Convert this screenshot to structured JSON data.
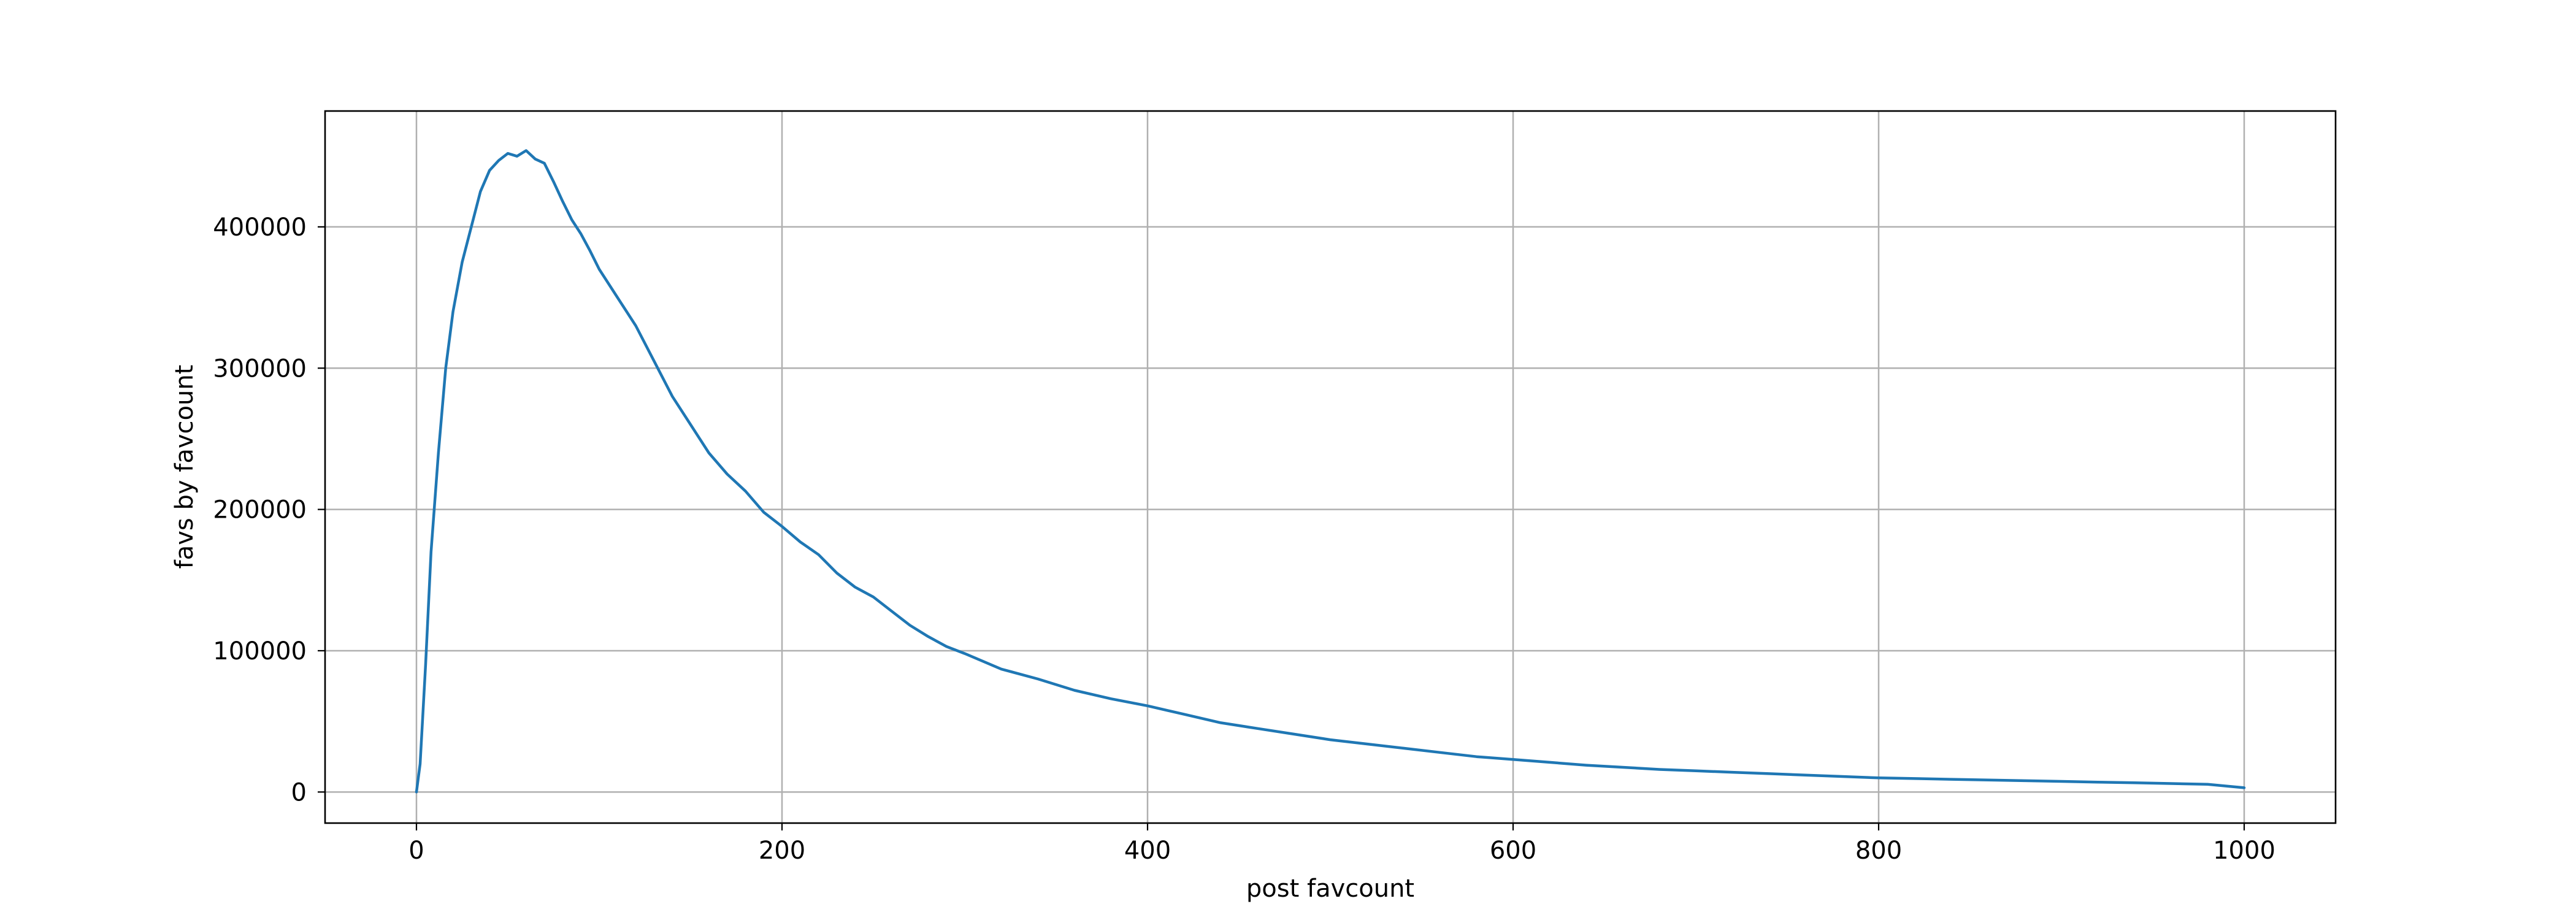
{
  "chart_data": {
    "type": "line",
    "title": "",
    "xlabel": "post favcount",
    "ylabel": "favs by favcount",
    "xlim": [
      -50,
      1050
    ],
    "ylim": [
      -22000,
      482000
    ],
    "x_ticks": [
      0,
      200,
      400,
      600,
      800,
      1000
    ],
    "y_ticks": [
      0,
      100000,
      200000,
      300000,
      400000
    ],
    "x_tick_labels": [
      "0",
      "200",
      "400",
      "600",
      "800",
      "1000"
    ],
    "y_tick_labels": [
      "0",
      "100000",
      "200000",
      "300000",
      "400000"
    ],
    "grid": true,
    "legend": "none",
    "series": [
      {
        "color": "#1f77b4",
        "x": [
          0,
          2,
          5,
          8,
          12,
          16,
          20,
          25,
          30,
          35,
          40,
          45,
          50,
          55,
          60,
          65,
          70,
          75,
          80,
          85,
          90,
          95,
          100,
          110,
          120,
          130,
          140,
          150,
          160,
          170,
          180,
          190,
          200,
          210,
          220,
          230,
          240,
          250,
          260,
          270,
          280,
          290,
          300,
          320,
          340,
          360,
          380,
          400,
          420,
          440,
          460,
          480,
          500,
          520,
          540,
          560,
          580,
          600,
          620,
          640,
          660,
          680,
          700,
          720,
          740,
          760,
          780,
          800,
          820,
          840,
          860,
          880,
          900,
          920,
          940,
          960,
          980,
          1000
        ],
        "y": [
          0,
          20000,
          90000,
          170000,
          240000,
          300000,
          340000,
          375000,
          400000,
          425000,
          440000,
          447000,
          452000,
          450000,
          454000,
          448000,
          445000,
          432000,
          418000,
          405000,
          395000,
          383000,
          370000,
          350000,
          330000,
          305000,
          280000,
          260000,
          240000,
          225000,
          213000,
          198000,
          188000,
          177000,
          168000,
          155000,
          145000,
          138000,
          128000,
          118000,
          110000,
          103000,
          98000,
          87000,
          80000,
          72000,
          66000,
          61000,
          55000,
          49000,
          45000,
          41000,
          37000,
          34000,
          31000,
          28000,
          25000,
          23000,
          21000,
          19000,
          17500,
          16000,
          15000,
          14000,
          13000,
          12000,
          11000,
          10000,
          9500,
          9000,
          8500,
          8000,
          7500,
          7000,
          6500,
          6000,
          5500,
          3000
        ]
      }
    ]
  }
}
